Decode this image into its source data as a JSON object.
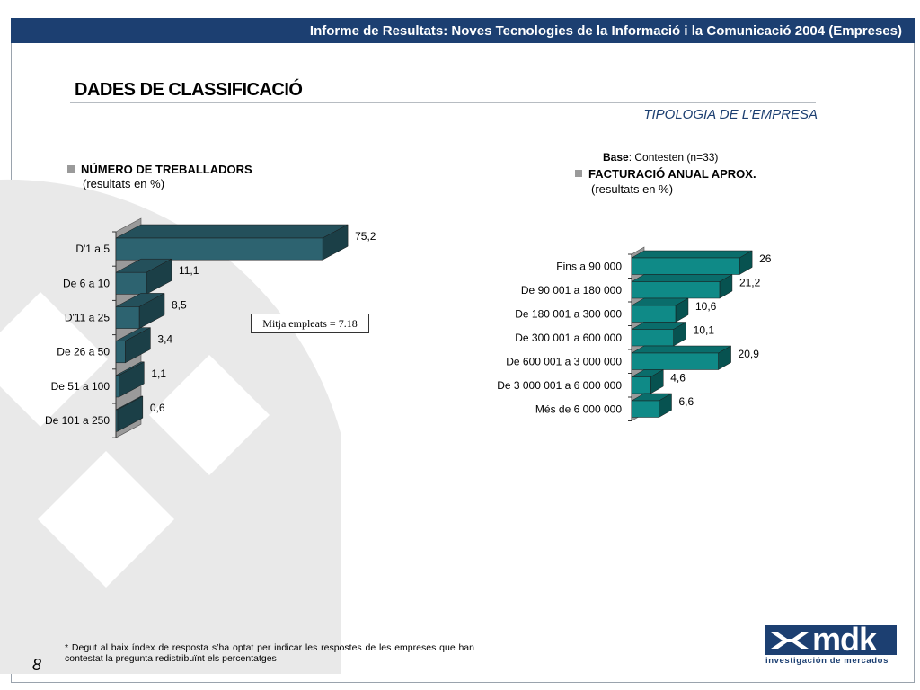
{
  "header": {
    "title": "Informe de Resultats: Noves Tecnologies de la Informació i la Comunicació 2004 (Empreses)"
  },
  "page": {
    "title": "DADES DE CLASSIFICACIÓ",
    "subtitle": "TIPOLOGIA DE L’EMPRESA",
    "base_label": "Base",
    "base_text": ": Contesten (n=33)",
    "page_number": "8",
    "footnote": "* Degut al baix índex de resposta s’ha optat per indicar les respostes de les empreses que han contestat la pregunta redistribuïnt els percentatges"
  },
  "logo": {
    "text": "mdk",
    "tagline": "investigación de mercados"
  },
  "colors": {
    "header": "#1c3f71",
    "bar_left_front": "#2d6370",
    "bar_right_front": "#0f8a87",
    "deco": "#e9e9e9"
  },
  "chart_data": [
    {
      "type": "bar",
      "orientation": "horizontal",
      "title": "NÚMERO DE TREBALLADORS",
      "subtitle": "(resultats en %)",
      "categories": [
        "D'1 a 5",
        "De 6 a 10",
        "D'11 a 25",
        "De 26 a 50",
        "De 51 a 100",
        "De 101 a 250"
      ],
      "values": [
        75.2,
        11.1,
        8.5,
        3.4,
        1.1,
        0.6
      ],
      "value_labels": [
        "75,2",
        "11,1",
        "8,5",
        "3,4",
        "1,1",
        "0,6"
      ],
      "annotation": "Mitja empleats = 7.18",
      "style": "3d"
    },
    {
      "type": "bar",
      "orientation": "horizontal",
      "title": "FACTURACIÓ ANUAL APROX.",
      "subtitle": "(resultats en %)",
      "categories": [
        "Fins a 90 000",
        "De 90 001 a 180 000",
        "De 180 001 a 300 000",
        "De 300 001 a 600 000",
        "De 600 001 a 3 000 000",
        "De 3 000 001 a 6 000 000",
        "Més de  6 000 000"
      ],
      "values": [
        26,
        21.2,
        10.6,
        10.1,
        20.9,
        4.6,
        6.6
      ],
      "value_labels": [
        "26",
        "21,2",
        "10,6",
        "10,1",
        "20,9",
        "4,6",
        "6,6"
      ],
      "style": "3d"
    }
  ]
}
